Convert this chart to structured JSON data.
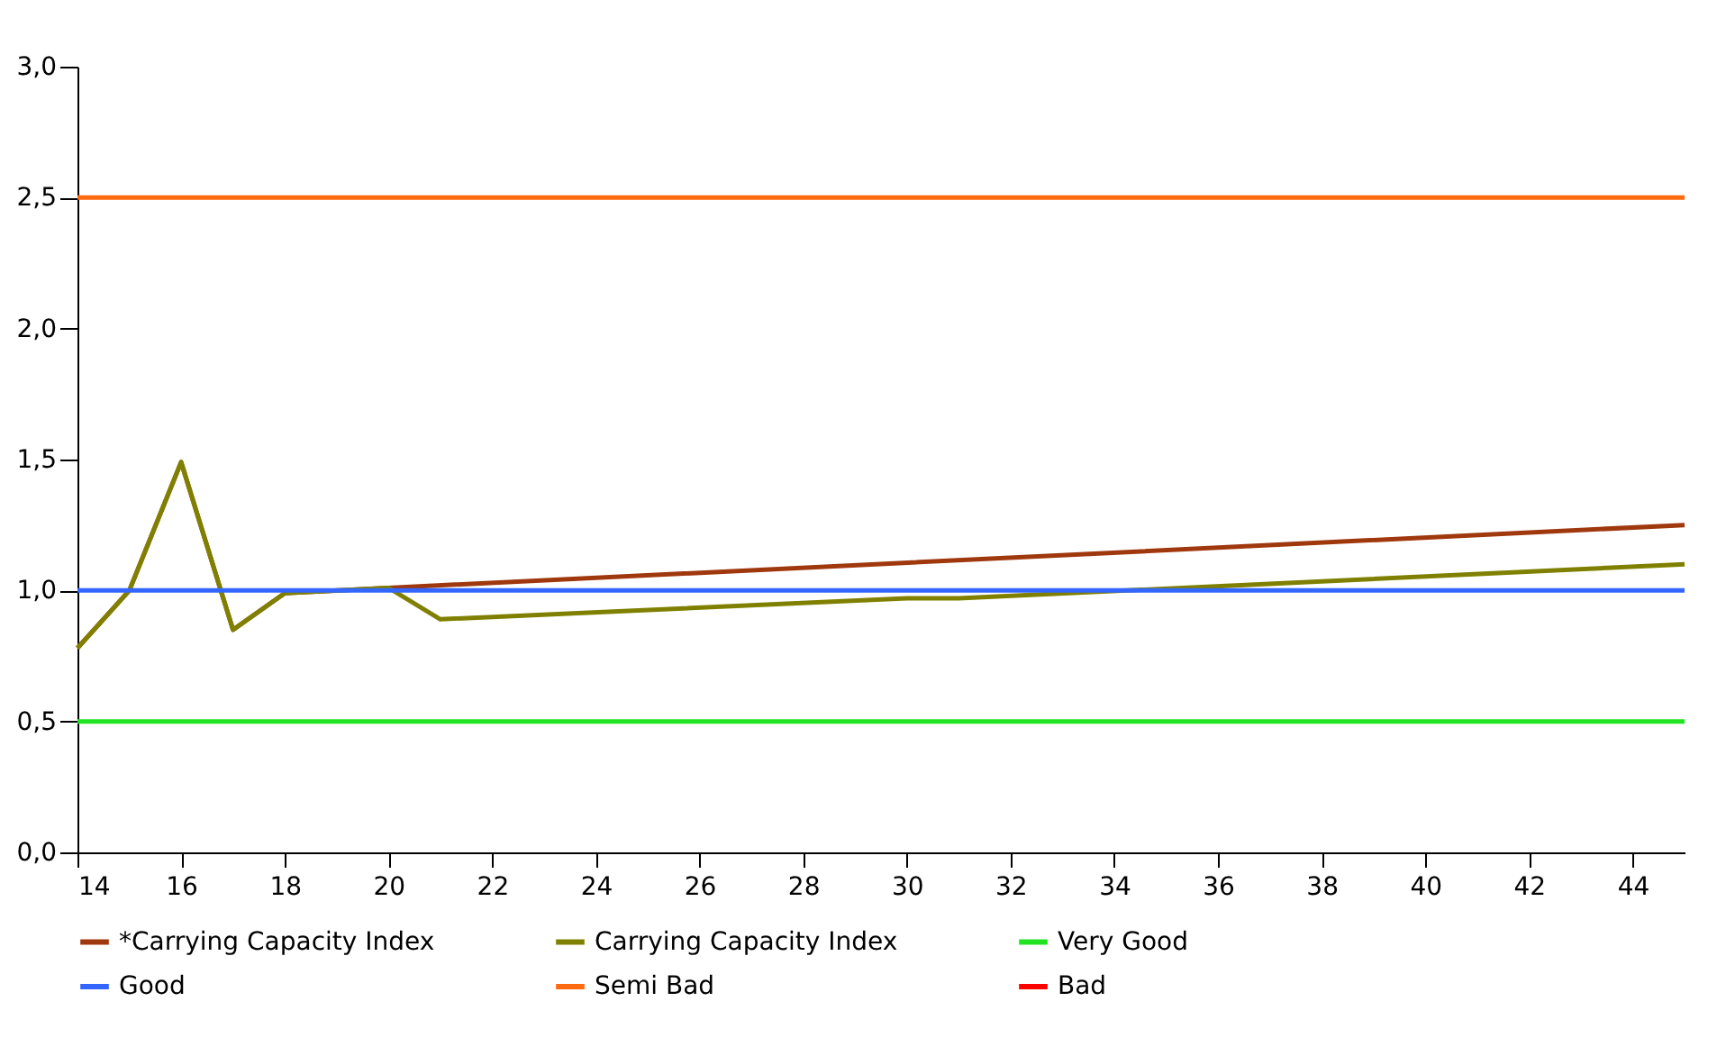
{
  "chart_data": {
    "type": "line",
    "xlim": [
      14,
      45
    ],
    "xticks": [
      14,
      16,
      18,
      20,
      22,
      24,
      26,
      28,
      30,
      32,
      34,
      36,
      38,
      40,
      42,
      44
    ],
    "ylim": [
      0,
      3.0
    ],
    "yticks": [
      {
        "value": 0,
        "label": "0,0"
      },
      {
        "value": 0.5,
        "label": "0,5"
      },
      {
        "value": 1.0,
        "label": "1,0"
      },
      {
        "value": 1.5,
        "label": "1,5"
      },
      {
        "value": 2.0,
        "label": "2,0"
      },
      {
        "value": 2.5,
        "label": "2,5"
      },
      {
        "value": 3.0,
        "label": "3,0"
      }
    ],
    "grid": false,
    "legend": "bottom",
    "series": [
      {
        "name": "*Carrying Capacity Index",
        "color": "#a0380e",
        "x": [
          14,
          15,
          16,
          17,
          18,
          20,
          45
        ],
        "values": [
          0.78,
          1.0,
          1.49,
          0.85,
          0.99,
          1.01,
          1.25
        ]
      },
      {
        "name": "Carrying Capacity Index",
        "color": "#808000",
        "x": [
          14,
          15,
          16,
          17,
          18,
          20,
          21,
          30,
          31,
          45
        ],
        "values": [
          0.78,
          1.0,
          1.49,
          0.85,
          0.99,
          1.01,
          0.89,
          0.97,
          0.97,
          1.1
        ]
      },
      {
        "name": "Very Good",
        "color": "#22e322",
        "x": [
          14,
          45
        ],
        "values": [
          0.5,
          0.5
        ]
      },
      {
        "name": "Good",
        "color": "#3366ff",
        "x": [
          14,
          45
        ],
        "values": [
          1.0,
          1.0
        ]
      },
      {
        "name": "Semi Bad",
        "color": "#ff6a0f",
        "x": [
          14,
          45
        ],
        "values": [
          2.5,
          2.5
        ]
      },
      {
        "name": "Bad",
        "color": "#ff0000"
      }
    ]
  }
}
